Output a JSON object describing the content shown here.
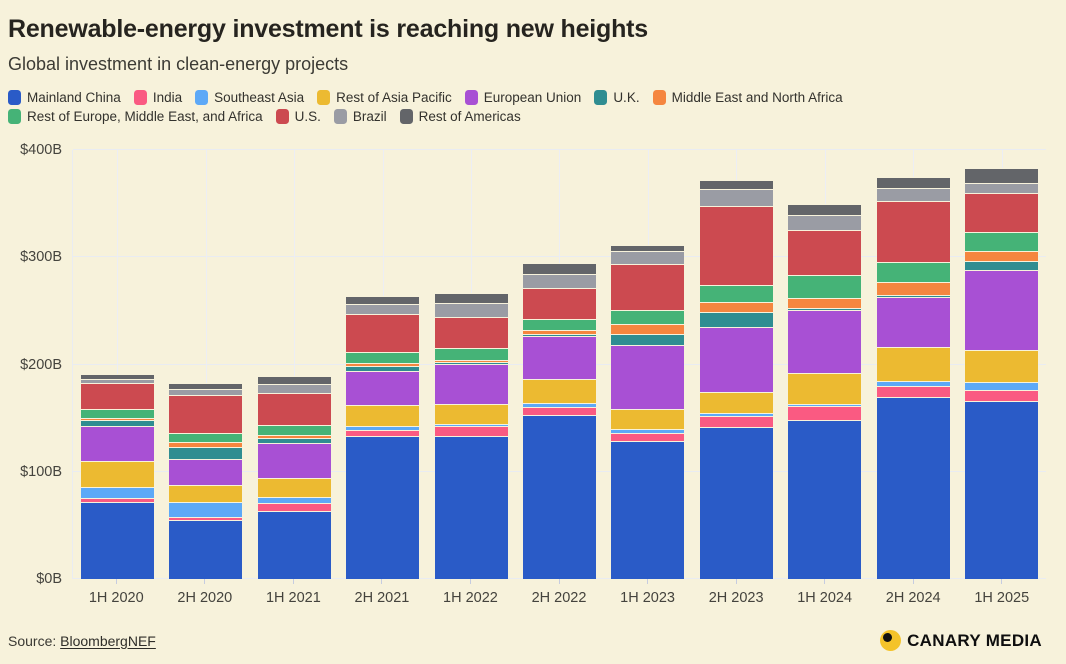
{
  "page": {
    "background": "#f7f2db"
  },
  "header": {
    "title": "Renewable-energy investment is reaching new heights",
    "subtitle": "Global investment in clean-energy projects"
  },
  "chart_data": {
    "type": "bar",
    "stacked": true,
    "title": "Renewable-energy investment is reaching new heights",
    "subtitle": "Global investment in clean-energy projects",
    "unit": "$B",
    "categories": [
      "1H 2020",
      "2H 2020",
      "1H 2021",
      "2H 2021",
      "1H 2022",
      "2H 2022",
      "1H 2023",
      "2H 2023",
      "1H 2024",
      "2H 2024",
      "1H 2025"
    ],
    "series": [
      {
        "name": "Mainland China",
        "color": "#2a5bc7",
        "values": [
          72,
          55,
          63,
          133,
          133,
          153,
          129,
          142,
          148,
          170,
          166
        ]
      },
      {
        "name": "India",
        "color": "#fa5a82",
        "values": [
          4,
          3,
          7,
          6,
          9,
          7,
          7,
          10,
          13,
          10,
          10
        ]
      },
      {
        "name": "Southeast Asia",
        "color": "#5da9f7",
        "values": [
          10,
          14,
          6,
          4,
          2,
          4,
          4,
          3,
          2,
          5,
          7
        ]
      },
      {
        "name": "Rest of Asia Pacific",
        "color": "#ecba31",
        "values": [
          24,
          16,
          18,
          20,
          19,
          22,
          19,
          20,
          29,
          32,
          30
        ]
      },
      {
        "name": "European Union",
        "color": "#a850d4",
        "values": [
          33,
          24,
          33,
          32,
          37,
          40,
          60,
          61,
          59,
          47,
          75
        ]
      },
      {
        "name": "U.K.",
        "color": "#2f8d91",
        "values": [
          6,
          11,
          5,
          5,
          1,
          1,
          10,
          14,
          1,
          1,
          8
        ]
      },
      {
        "name": "Middle East and North Africa",
        "color": "#f5863f",
        "values": [
          1,
          5,
          3,
          3,
          2,
          4,
          9,
          9,
          9,
          12,
          9
        ]
      },
      {
        "name": "Rest of Europe, Middle East, and Africa",
        "color": "#45b377",
        "values": [
          8,
          8,
          9,
          10,
          11,
          10,
          13,
          16,
          21,
          19,
          18
        ]
      },
      {
        "name": "U.S.",
        "color": "#cc4a50",
        "values": [
          24,
          35,
          30,
          35,
          29,
          29,
          43,
          74,
          42,
          57,
          36
        ]
      },
      {
        "name": "Brazil",
        "color": "#9a9ca4",
        "values": [
          4,
          6,
          8,
          9,
          13,
          13,
          12,
          16,
          14,
          12,
          9
        ]
      },
      {
        "name": "Rest of Americas",
        "color": "#636569",
        "values": [
          5,
          6,
          7,
          7,
          9,
          10,
          6,
          8,
          10,
          10,
          14
        ]
      }
    ],
    "y_ticks": [
      "$0B",
      "$100B",
      "$200B",
      "$300B",
      "$400B"
    ],
    "ylim": [
      0,
      400
    ],
    "grid": true,
    "legend_position": "top"
  },
  "footer": {
    "source_prefix": "Source: ",
    "source_link": "BloombergNEF",
    "logo_text": "CANARY MEDIA",
    "logo_color": "#f4c32a"
  }
}
